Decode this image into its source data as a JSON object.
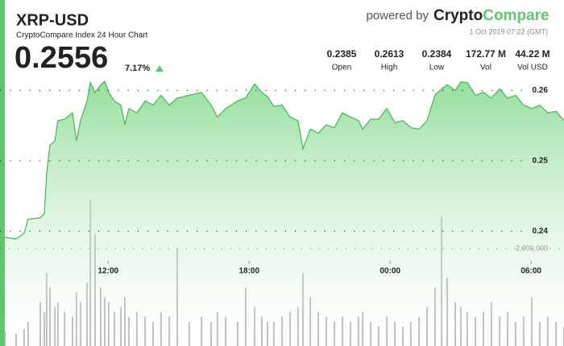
{
  "header": {
    "powered": "powered by",
    "brand_a": "Crypto",
    "brand_b": "Compare",
    "date": "1 Oct 2019 07:22 (GMT)",
    "price": "0.2556",
    "change": "7.17%",
    "stats": [
      {
        "value": "0.2385",
        "label": "Open"
      },
      {
        "value": "0.2613",
        "label": "High"
      },
      {
        "value": "0.2384",
        "label": "Low"
      },
      {
        "value": "172.77 M",
        "label": "Vol"
      },
      {
        "value": "44.22 M",
        "label": "Vol USD"
      }
    ]
  },
  "chart_data": {
    "type": "line",
    "title": "XRP-USD",
    "subtitle": "CryptoCompare Index 24 Hour Chart",
    "x": [
      7.6,
      8.08,
      8.42,
      8.59,
      9.11,
      9.28,
      9.38,
      9.52,
      9.73,
      9.86,
      10.14,
      10.48,
      10.65,
      10.82,
      11.1,
      11.24,
      11.44,
      11.68,
      11.85,
      12.02,
      12.26,
      12.54,
      12.71,
      12.88,
      13.22,
      13.57,
      13.91,
      14.25,
      14.6,
      14.94,
      15.45,
      15.97,
      16.38,
      16.65,
      17,
      17.51,
      17.85,
      18.23,
      18.54,
      18.78,
      19.05,
      19.4,
      19.74,
      20.08,
      20.29,
      20.6,
      20.94,
      21.28,
      21.63,
      21.97,
      22.31,
      22.65,
      22.83,
      23.17,
      23.51,
      23.86,
      24.2,
      24.54,
      24.88,
      25.23,
      25.57,
      25.91,
      26.19,
      26.43,
      26.77,
      27.01,
      27.28,
      27.63,
      27.97,
      28.31,
      28.66,
      29,
      29.34,
      29.68,
      30.03,
      30.37,
      30.71,
      31.06,
      31.4
    ],
    "series": [
      {
        "color": "#4cba5c",
        "fill": "#8fdc98",
        "values": [
          0.2391,
          0.2389,
          0.2397,
          0.2417,
          0.2419,
          0.2425,
          0.2482,
          0.2522,
          0.2528,
          0.2557,
          0.2559,
          0.2568,
          0.2528,
          0.2557,
          0.2585,
          0.2611,
          0.2597,
          0.2608,
          0.2613,
          0.2597,
          0.2585,
          0.2579,
          0.2551,
          0.2574,
          0.2568,
          0.2585,
          0.2579,
          0.2593,
          0.2579,
          0.2589,
          0.2593,
          0.2597,
          0.2579,
          0.2562,
          0.2574,
          0.2585,
          0.2589,
          0.2609,
          0.2597,
          0.2591,
          0.2577,
          0.2579,
          0.2562,
          0.2557,
          0.2517,
          0.2545,
          0.2539,
          0.2551,
          0.2547,
          0.2568,
          0.2562,
          0.2557,
          0.2545,
          0.2559,
          0.2559,
          0.2574,
          0.2554,
          0.2557,
          0.2547,
          0.2545,
          0.2557,
          0.2593,
          0.2602,
          0.2608,
          0.26,
          0.2612,
          0.2611,
          0.2593,
          0.2597,
          0.2589,
          0.2602,
          0.2589,
          0.2593,
          0.2579,
          0.2574,
          0.2579,
          0.2568,
          0.257,
          0.2557
        ]
      },
      {
        "type": "bar",
        "axis": "y2",
        "color": "#a3a3a3",
        "values": [
          300000,
          250000,
          350000,
          500000,
          900000,
          700000,
          1500000,
          1200000,
          800000,
          900000,
          700000,
          600000,
          1100000,
          900000,
          1300000,
          3000000,
          2300000,
          1200000,
          1000000,
          900000,
          700000,
          800000,
          1000000,
          600000,
          700000,
          600000,
          500000,
          700000,
          600000,
          2000000,
          500000,
          600000,
          500000,
          700000,
          600000,
          500000,
          1200000,
          800000,
          600000,
          500000,
          500000,
          600000,
          700000,
          800000,
          1500000,
          1000000,
          700000,
          600000,
          500000,
          600000,
          500000,
          600000,
          700000,
          500000,
          400000,
          600000,
          500000,
          400000,
          500000,
          600000,
          800000,
          1200000,
          2650000,
          1400000,
          900000,
          800000,
          700000,
          600000,
          700000,
          900000,
          600000,
          700000,
          500000,
          600000,
          1000000,
          500000,
          600000,
          500000,
          400000
        ]
      }
    ],
    "xlim": [
      7.6,
      31.4
    ],
    "xticks": [
      {
        "value": 12,
        "label": "12:00"
      },
      {
        "value": 18,
        "label": "18:00"
      },
      {
        "value": 24,
        "label": "00:00"
      },
      {
        "value": 30,
        "label": "06:00"
      }
    ],
    "ylim": [
      0.2237,
      0.2614
    ],
    "yticks": [
      0.24,
      0.25,
      0.26
    ],
    "y2lim": [
      0,
      5450000
    ],
    "y2ticks": [
      {
        "value": 2000000,
        "label": "2,000,000"
      }
    ],
    "grid": true
  }
}
